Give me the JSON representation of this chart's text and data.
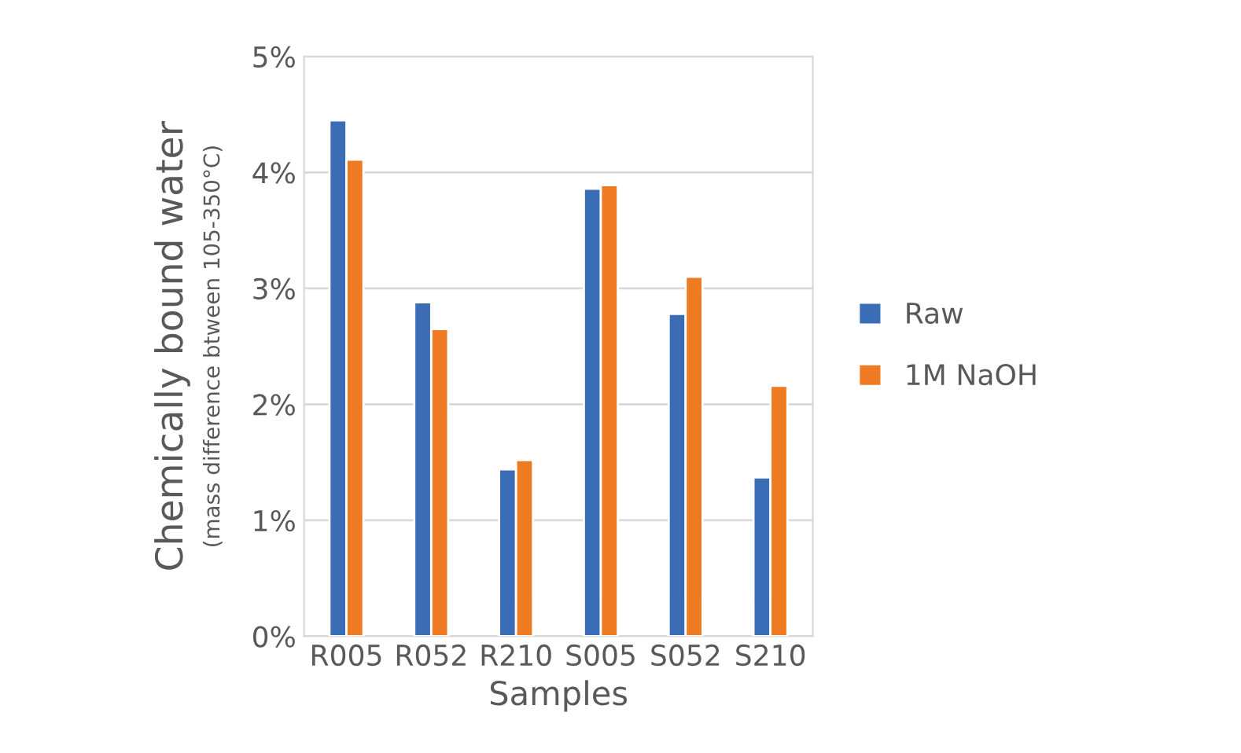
{
  "chart_data": {
    "type": "bar",
    "xlabel": "Samples",
    "ylabel": "Chemically bound water",
    "annotations": [
      "(mass difference btween 105-350°C)"
    ],
    "categories": [
      "R005",
      "R052",
      "R210",
      "S005",
      "S052",
      "S210"
    ],
    "series": [
      {
        "name": "Raw",
        "color": "#3a6db5",
        "values": [
          4.45,
          2.88,
          1.44,
          3.86,
          2.78,
          1.37
        ]
      },
      {
        "name": "1M NaOH",
        "color": "#ee7b22",
        "values": [
          4.11,
          2.65,
          1.52,
          3.89,
          3.1,
          2.16
        ]
      }
    ],
    "ylim": [
      0,
      5
    ],
    "yticks": [
      {
        "value": 0,
        "label": "0%"
      },
      {
        "value": 1,
        "label": "1%"
      },
      {
        "value": 2,
        "label": "2%"
      },
      {
        "value": 3,
        "label": "3%"
      },
      {
        "value": 4,
        "label": "4%"
      },
      {
        "value": 5,
        "label": "5%"
      }
    ],
    "grid": "y",
    "legend": "right"
  }
}
